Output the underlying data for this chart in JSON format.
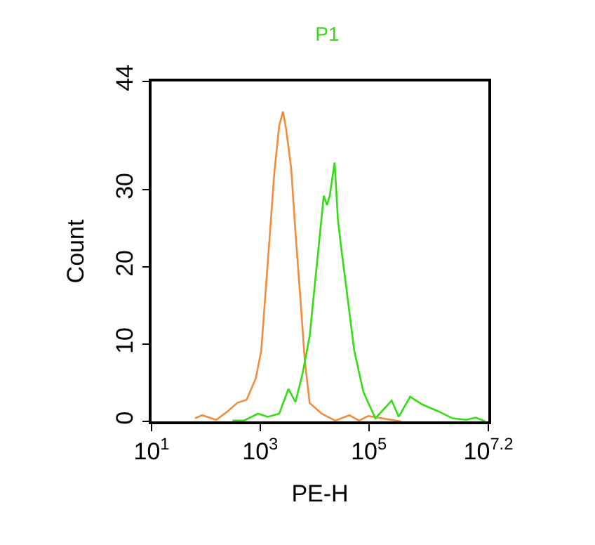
{
  "chart_data": {
    "type": "line",
    "title": "P1",
    "xlabel": "PE-H",
    "ylabel": "Count",
    "log": "x",
    "xlim": [
      10,
      15848932
    ],
    "xticks": [
      {
        "value": 10,
        "label": "10$^{1}$"
      },
      {
        "value": 1000,
        "label": "10$^{3}$"
      },
      {
        "value": 100000,
        "label": "10$^{5}$"
      },
      {
        "value": 15848932,
        "label": "10$^{7.2}$"
      }
    ],
    "ylim": [
      0,
      44
    ],
    "yticks": [
      0,
      10,
      20,
      30,
      44
    ],
    "marker": "none",
    "line_style": "solid",
    "series": [
      {
        "color": "#f28c3c",
        "x": [
          63,
          85,
          155,
          251,
          380,
          562,
          832,
          1047,
          1230,
          1514,
          1820,
          2239,
          2630,
          3020,
          3715,
          4467,
          5495,
          6607,
          8128,
          13490,
          23990,
          43650,
          66070,
          97720,
          173800,
          389000
        ],
        "values": [
          0.4,
          0.8,
          0.2,
          1.3,
          2.4,
          2.8,
          5.6,
          9.2,
          15.9,
          24.4,
          32.2,
          38.3,
          40.1,
          37.7,
          32.8,
          24.4,
          15.9,
          8.0,
          2.4,
          1.0,
          0.1,
          0.8,
          0.1,
          0.7,
          0.4,
          0
        ]
      },
      {
        "color": "#33dd11",
        "x": [
          309,
          501,
          912,
          1380,
          2239,
          3311,
          4467,
          6026,
          8128,
          10960,
          14790,
          16980,
          19050,
          23440,
          26920,
          30900,
          39810,
          53700,
          79430,
          131800,
          263000,
          354800,
          575400,
          955000,
          1905000,
          3467000,
          6166000,
          9333000,
          13800000
        ],
        "values": [
          0.1,
          0.1,
          1.0,
          0.6,
          1.0,
          4.2,
          2.5,
          6.2,
          11.0,
          20.1,
          29.2,
          28.0,
          29.2,
          33.5,
          26.2,
          22.5,
          16.5,
          9.2,
          3.8,
          0.4,
          2.7,
          0.6,
          3.2,
          2.2,
          1.3,
          0.4,
          0.2,
          0.5,
          0
        ]
      }
    ]
  }
}
